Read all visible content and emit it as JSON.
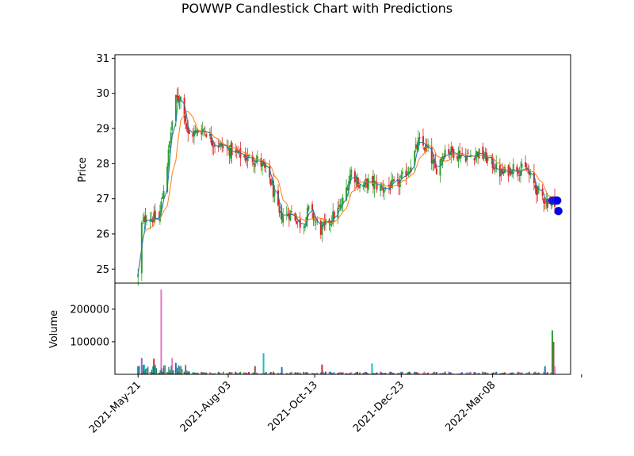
{
  "chart_data": {
    "type": "candlestick",
    "title": "POWWP Candlestick Chart with Predictions",
    "price_panel": {
      "ylabel": "Price",
      "ylim": [
        24.6,
        31.1
      ],
      "yticks": [
        25,
        26,
        27,
        28,
        29,
        30,
        31
      ],
      "up_color": "#2ca02c",
      "down_color": "#d62728",
      "ma_short_color": "#1f77b4",
      "ma_long_color": "#ff7f0e",
      "prediction_color": "#0000ff",
      "keyframes": [
        [
          "2021-05-21",
          24.8
        ],
        [
          "2021-05-23",
          26.2
        ],
        [
          "2021-05-28",
          26.5
        ],
        [
          "2021-06-07",
          26.4
        ],
        [
          "2021-06-14",
          28.0
        ],
        [
          "2021-06-20",
          29.8
        ],
        [
          "2021-06-26",
          29.9
        ],
        [
          "2021-07-01",
          28.8
        ],
        [
          "2021-07-08",
          28.9
        ],
        [
          "2021-07-14",
          29.0
        ],
        [
          "2021-07-22",
          28.6
        ],
        [
          "2021-08-03",
          28.4
        ],
        [
          "2021-08-15",
          28.2
        ],
        [
          "2021-08-28",
          28.1
        ],
        [
          "2021-09-06",
          27.6
        ],
        [
          "2021-09-14",
          26.5
        ],
        [
          "2021-09-24",
          26.6
        ],
        [
          "2021-10-03",
          26.2
        ],
        [
          "2021-10-08",
          26.7
        ],
        [
          "2021-10-18",
          26.1
        ],
        [
          "2021-10-28",
          26.5
        ],
        [
          "2021-11-04",
          26.8
        ],
        [
          "2021-11-12",
          27.8
        ],
        [
          "2021-11-20",
          27.3
        ],
        [
          "2021-11-27",
          27.5
        ],
        [
          "2021-12-06",
          27.3
        ],
        [
          "2021-12-20",
          27.4
        ],
        [
          "2021-12-30",
          27.9
        ],
        [
          "2022-01-06",
          28.6
        ],
        [
          "2022-01-14",
          28.4
        ],
        [
          "2022-01-20",
          27.8
        ],
        [
          "2022-01-28",
          28.4
        ],
        [
          "2022-02-06",
          28.3
        ],
        [
          "2022-02-16",
          28.2
        ],
        [
          "2022-02-24",
          28.3
        ],
        [
          "2022-03-05",
          28.1
        ],
        [
          "2022-03-15",
          27.7
        ],
        [
          "2022-03-25",
          27.9
        ],
        [
          "2022-04-05",
          27.8
        ],
        [
          "2022-04-14",
          27.2
        ],
        [
          "2022-04-22",
          26.9
        ],
        [
          "2022-04-28",
          26.95
        ]
      ],
      "predictions": [
        {
          "x": "2022-04-26",
          "y": 26.95
        },
        {
          "x": "2022-04-27",
          "y": 26.95
        },
        {
          "x": "2022-04-28",
          "y": 26.95
        },
        {
          "x": "2022-04-29",
          "y": 26.95
        },
        {
          "x": "2022-04-30",
          "y": 26.95
        },
        {
          "x": "2022-05-01",
          "y": 26.65
        }
      ]
    },
    "volume_panel": {
      "ylabel": "Volume",
      "ylim": [
        0,
        280000
      ],
      "yticks": [
        100000,
        200000
      ],
      "spikes": [
        {
          "x": "2021-05-21",
          "y": 25000
        },
        {
          "x": "2021-05-22",
          "y": 15000
        },
        {
          "x": "2021-05-24",
          "y": 50000
        },
        {
          "x": "2021-05-26",
          "y": 30000
        },
        {
          "x": "2021-05-30",
          "y": 20000
        },
        {
          "x": "2021-06-03",
          "y": 48000
        },
        {
          "x": "2021-06-04",
          "y": 30000
        },
        {
          "x": "2021-06-06",
          "y": 25000
        },
        {
          "x": "2021-06-09",
          "y": 260000
        },
        {
          "x": "2021-06-11",
          "y": 20000
        },
        {
          "x": "2021-06-18",
          "y": 50000
        },
        {
          "x": "2021-06-19",
          "y": 53000
        },
        {
          "x": "2021-06-21",
          "y": 35000
        },
        {
          "x": "2021-06-29",
          "y": 30000
        },
        {
          "x": "2021-08-25",
          "y": 25000
        },
        {
          "x": "2021-09-01",
          "y": 65000
        },
        {
          "x": "2021-09-05",
          "y": 30000
        },
        {
          "x": "2021-09-12",
          "y": 42000
        },
        {
          "x": "2021-09-16",
          "y": 22000
        },
        {
          "x": "2021-10-03",
          "y": 30000
        },
        {
          "x": "2021-10-19",
          "y": 30000
        },
        {
          "x": "2021-11-29",
          "y": 33000
        },
        {
          "x": "2022-01-08",
          "y": 18000
        },
        {
          "x": "2022-04-20",
          "y": 25000
        },
        {
          "x": "2022-04-26",
          "y": 135000
        },
        {
          "x": "2022-04-27",
          "y": 100000
        },
        {
          "x": "2022-04-28",
          "y": 25000
        }
      ]
    },
    "x_axis": {
      "start": "2021-05-21",
      "end": "2022-05-13",
      "xlim": [
        "2021-05-02",
        "2022-05-11"
      ],
      "tick_labels": [
        "2021-May-21",
        "2021-Aug-03",
        "2021-Oct-13",
        "2021-Dec-23",
        "2022-Mar-08",
        ""
      ],
      "tick_dates": [
        "2021-05-21",
        "2021-08-03",
        "2021-10-13",
        "2021-12-23",
        "2022-03-08",
        "2022-05-20"
      ]
    }
  }
}
